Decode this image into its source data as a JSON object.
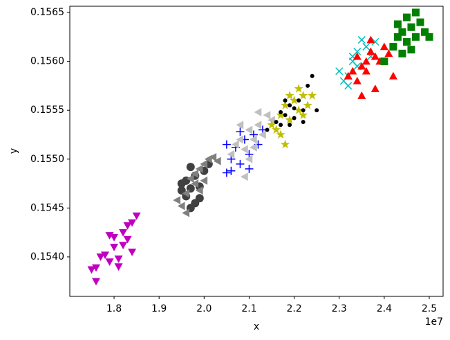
{
  "chart_data": {
    "type": "scatter",
    "xlabel": "x",
    "ylabel": "y",
    "x_offset_label": "1e7",
    "xlim": [
      17017000,
      25307000
    ],
    "ylim": [
      0.153596,
      0.156564
    ],
    "xticks": [
      {
        "value": 18000000,
        "label": "1.8"
      },
      {
        "value": 19000000,
        "label": "1.9"
      },
      {
        "value": 20000000,
        "label": "2.0"
      },
      {
        "value": 21000000,
        "label": "2.1"
      },
      {
        "value": 22000000,
        "label": "2.2"
      },
      {
        "value": 23000000,
        "label": "2.3"
      },
      {
        "value": 24000000,
        "label": "2.4"
      },
      {
        "value": 25000000,
        "label": "2.5"
      }
    ],
    "yticks": [
      {
        "value": 0.154,
        "label": "0.1540"
      },
      0.1545,
      {
        "value": 0.155,
        "label": "0.1550"
      },
      0.1555,
      {
        "value": 0.156,
        "label": "0.1560"
      },
      0.1565
    ],
    "series": [
      {
        "marker": "v",
        "color": "#bf00bf",
        "x": [
          17500000,
          17600000,
          17600000,
          17800000,
          17900000,
          18000000,
          18000000,
          18100000,
          18200000,
          18200000,
          18300000,
          18400000,
          18400000,
          17900000,
          18500000,
          18100000,
          17700000,
          18300000
        ],
        "values": [
          0.15387,
          0.15389,
          0.15375,
          0.15402,
          0.15395,
          0.1541,
          0.1542,
          0.15398,
          0.15425,
          0.15412,
          0.15432,
          0.15405,
          0.15435,
          0.15422,
          0.15442,
          0.1539,
          0.154,
          0.15418
        ]
      },
      {
        "marker": "o",
        "color": "#404040",
        "x": [
          19500000,
          19600000,
          19700000,
          19600000,
          19800000,
          19900000,
          19700000,
          20000000,
          19800000,
          19500000,
          20100000,
          19900000,
          19700000
        ],
        "values": [
          0.15475,
          0.15478,
          0.1547,
          0.15462,
          0.15483,
          0.1546,
          0.15492,
          0.15488,
          0.15455,
          0.15468,
          0.15495,
          0.15472,
          0.1545
        ]
      },
      {
        "marker": "<",
        "color": "#808080",
        "x": [
          19400000,
          19600000,
          19700000,
          19800000,
          19900000,
          20000000,
          20100000,
          19800000,
          20200000,
          19500000,
          19600000,
          20000000,
          19900000,
          20300000
        ],
        "values": [
          0.15458,
          0.15465,
          0.1548,
          0.15475,
          0.1549,
          0.15495,
          0.155,
          0.15485,
          0.15502,
          0.15452,
          0.15445,
          0.15478,
          0.15468,
          0.15498
        ]
      },
      {
        "marker": "+",
        "color": "#0000ff",
        "x": [
          20500000,
          20600000,
          20700000,
          20800000,
          20900000,
          21000000,
          21100000,
          21200000,
          20500000,
          20800000,
          21000000,
          21300000,
          20600000
        ],
        "values": [
          0.15486,
          0.155,
          0.15512,
          0.15495,
          0.1552,
          0.15505,
          0.15525,
          0.15515,
          0.15515,
          0.15528,
          0.1549,
          0.1553,
          0.15488
        ]
      },
      {
        "marker": "<",
        "color": "#c0c0c0",
        "x": [
          20600000,
          20700000,
          20800000,
          20900000,
          21000000,
          21100000,
          21200000,
          21300000,
          21400000,
          21000000,
          20900000,
          21200000,
          21500000,
          20800000,
          21100000
        ],
        "values": [
          0.15505,
          0.15515,
          0.1552,
          0.1551,
          0.1553,
          0.1552,
          0.15535,
          0.15525,
          0.15545,
          0.155,
          0.15482,
          0.15548,
          0.1554,
          0.15535,
          0.15512
        ]
      },
      {
        "marker": "*",
        "color": "#bfbf00",
        "x": [
          21500000,
          21700000,
          21800000,
          21900000,
          22000000,
          22100000,
          22200000,
          22300000,
          22400000,
          21800000,
          21600000,
          22100000,
          21900000,
          22200000,
          21700000
        ],
        "values": [
          0.15535,
          0.15545,
          0.15555,
          0.1554,
          0.1556,
          0.1555,
          0.15565,
          0.15555,
          0.15565,
          0.15515,
          0.1553,
          0.15572,
          0.15565,
          0.15545,
          0.15525
        ]
      },
      {
        "marker": "o-small",
        "color": "#000000",
        "x": [
          21400000,
          21600000,
          21700000,
          21800000,
          21900000,
          22000000,
          22100000,
          22200000,
          22300000,
          22400000,
          22500000,
          21900000,
          22000000,
          21700000,
          22200000,
          21800000
        ],
        "values": [
          0.1553,
          0.15538,
          0.15548,
          0.15545,
          0.15555,
          0.15552,
          0.1556,
          0.1555,
          0.15575,
          0.15585,
          0.1555,
          0.15535,
          0.15542,
          0.15535,
          0.15538,
          0.1556
        ]
      },
      {
        "marker": "x",
        "color": "#00bfbf",
        "x": [
          23000000,
          23100000,
          23200000,
          23300000,
          23400000,
          23500000,
          23600000,
          23200000,
          23400000,
          23700000,
          23800000,
          23300000
        ],
        "values": [
          0.1559,
          0.1558,
          0.15585,
          0.156,
          0.1561,
          0.15622,
          0.15615,
          0.15575,
          0.15595,
          0.15605,
          0.1562,
          0.15605
        ]
      },
      {
        "marker": "^",
        "color": "#ff0000",
        "x": [
          23200000,
          23300000,
          23400000,
          23500000,
          23600000,
          23700000,
          23800000,
          23900000,
          24000000,
          23700000,
          23500000,
          23800000,
          24200000,
          23600000,
          24100000,
          23400000
        ],
        "values": [
          0.15585,
          0.1559,
          0.1558,
          0.15595,
          0.156,
          0.1561,
          0.15605,
          0.156,
          0.15615,
          0.15622,
          0.15565,
          0.15572,
          0.15585,
          0.1559,
          0.15608,
          0.15605
        ]
      },
      {
        "marker": "s",
        "color": "#008000",
        "x": [
          24000000,
          24200000,
          24300000,
          24400000,
          24500000,
          24600000,
          24700000,
          24800000,
          24500000,
          24300000,
          24600000,
          24900000,
          24400000,
          24700000,
          25000000
        ],
        "values": [
          0.156,
          0.15615,
          0.15625,
          0.1563,
          0.1562,
          0.15635,
          0.15625,
          0.1564,
          0.15645,
          0.15638,
          0.15612,
          0.1563,
          0.15608,
          0.1565,
          0.15625
        ]
      }
    ]
  }
}
